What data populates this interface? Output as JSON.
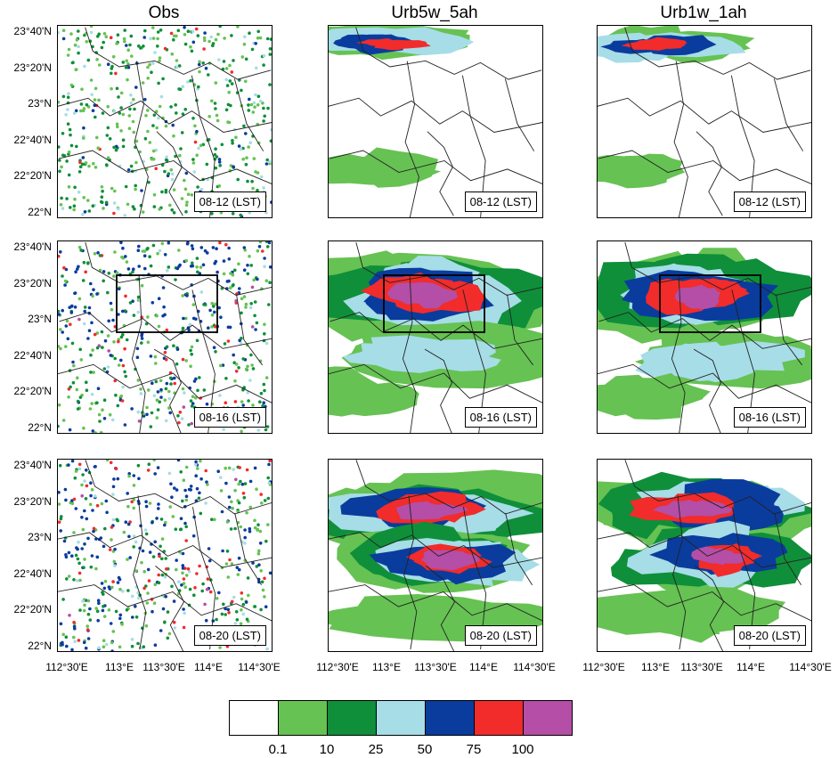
{
  "columns": [
    "Obs",
    "Urb5w_5ah",
    "Urb1w_1ah"
  ],
  "rows": [
    "08-12 (LST)",
    "08-16 (LST)",
    "08-20 (LST)"
  ],
  "y_axis_labels": [
    "23°40'N",
    "23°20'N",
    "23°N",
    "22°40'N",
    "22°20'N",
    "22°N"
  ],
  "x_axis_labels": [
    "112°30'E",
    "113°E",
    "113°30'E",
    "114°E",
    "114°30'E"
  ],
  "colorbar": {
    "labels": [
      "0.1",
      "10",
      "25",
      "50",
      "75",
      "100"
    ],
    "colors": [
      "#ffffff",
      "#66c253",
      "#0f8f3a",
      "#a6dde7",
      "#0a3c9e",
      "#f22b2b",
      "#b44ea6"
    ]
  }
}
